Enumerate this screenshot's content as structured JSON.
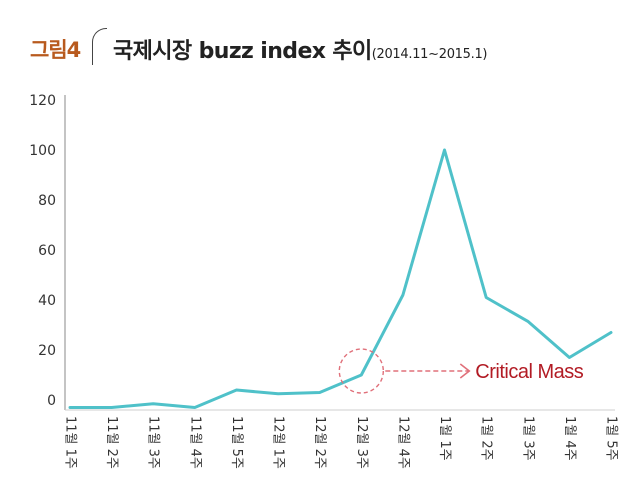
{
  "figure": {
    "label": "그림4",
    "title": "국제시장 buzz index 추이",
    "subtitle": "(2014.11~2015.1)"
  },
  "chart_data": {
    "type": "line",
    "categories": [
      "11월 1주",
      "11월 2주",
      "11월 3주",
      "11월 4주",
      "11월 5주",
      "12월 1주",
      "12월 2주",
      "12월 3주",
      "12월 4주",
      "1월 1주",
      "1월 2주",
      "1월 3주",
      "1월 4주",
      "1월 5주"
    ],
    "series": [
      {
        "values": [
          -3,
          -3,
          -1.5,
          -3,
          4,
          2.5,
          3,
          10,
          42,
          100,
          41,
          31.5,
          17,
          27
        ],
        "color": "#4fc1c9"
      }
    ],
    "yticks": [
      0,
      20,
      40,
      60,
      80,
      100,
      120
    ],
    "ylim": [
      -4,
      122
    ],
    "grid": false,
    "annotation": {
      "text": "Critical Mass",
      "category_index": 7,
      "value": 10,
      "color": "#b21b24"
    }
  }
}
